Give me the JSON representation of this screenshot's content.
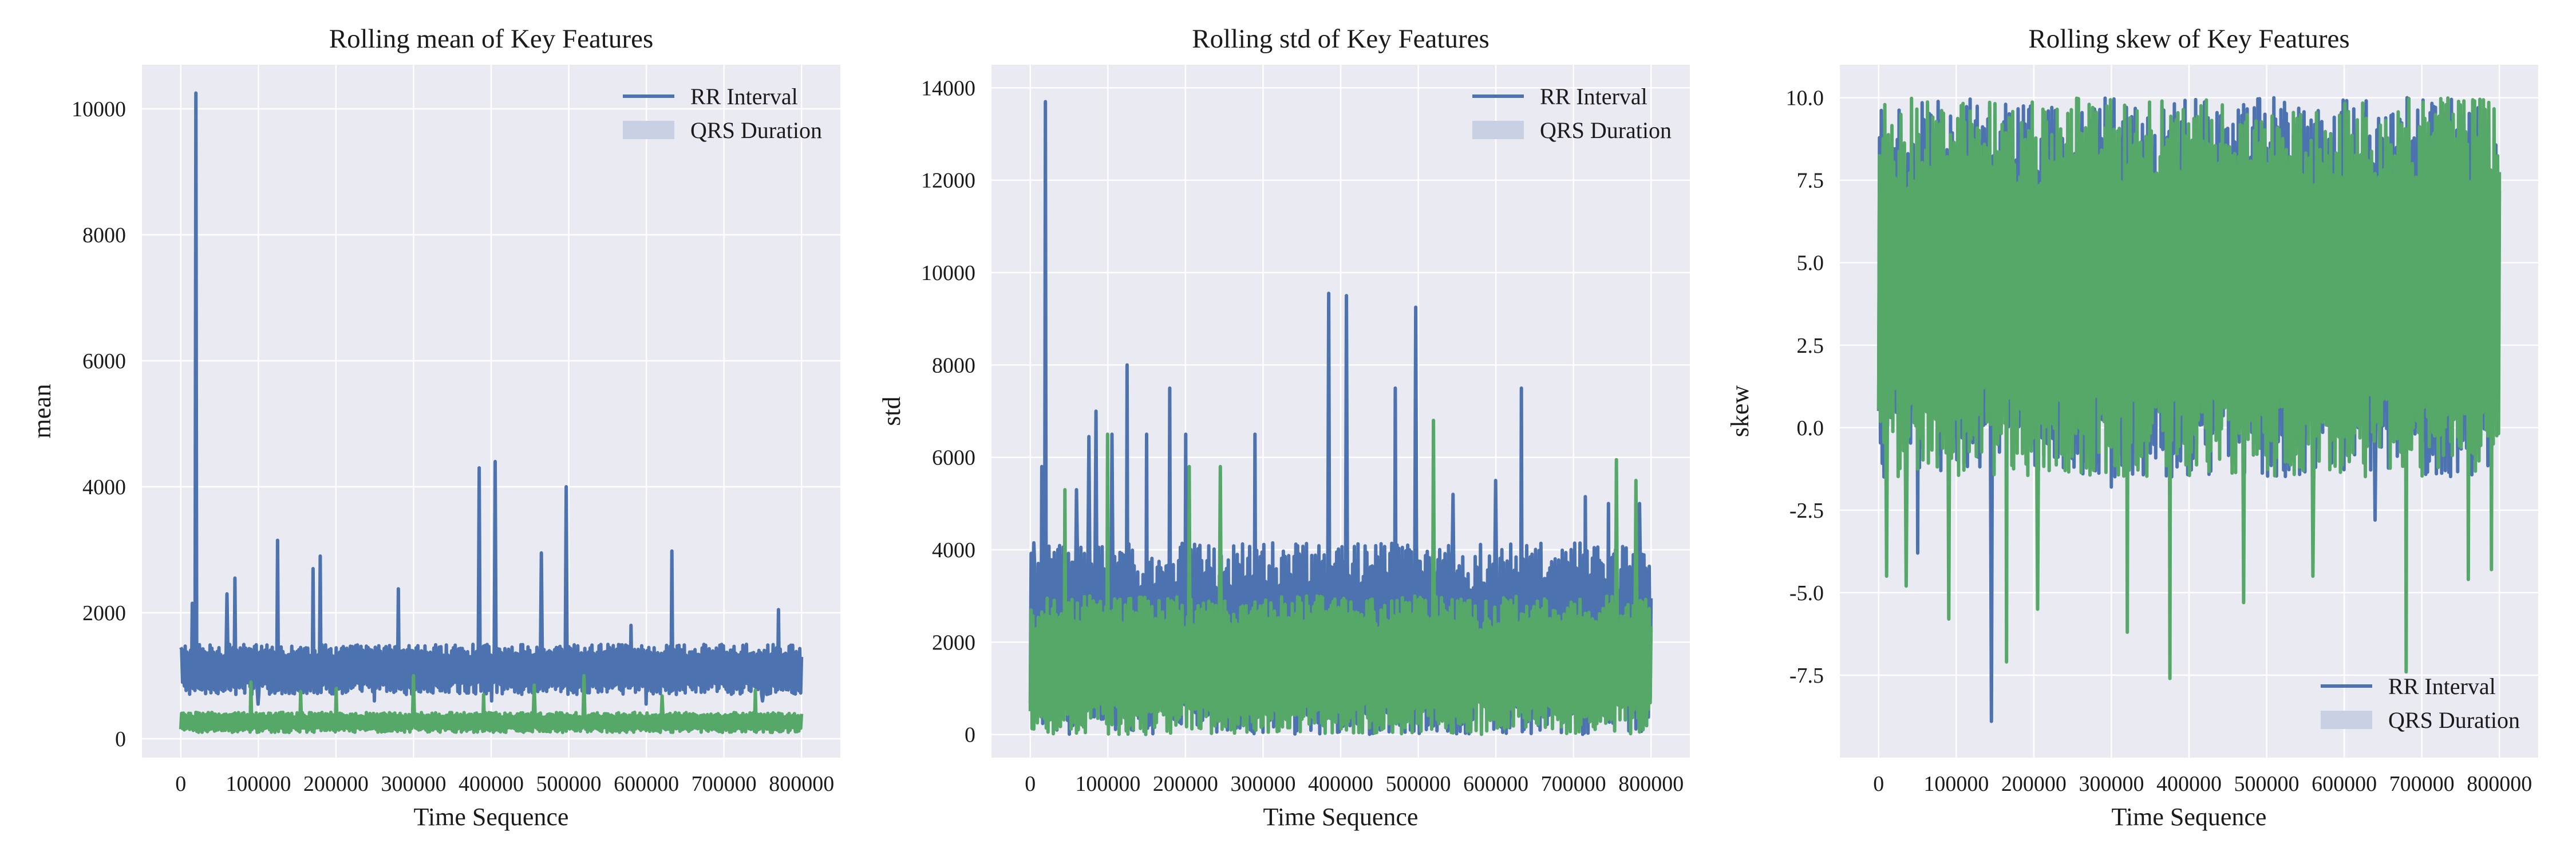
{
  "colors": {
    "rr": "#4c72b0",
    "qrs": "#55a868",
    "plot_bg": "#eaeaf2",
    "grid": "#ffffff",
    "legend_patch": "#c8d0e3"
  },
  "legend": {
    "rr_label": "RR Interval",
    "qrs_label": "QRS Duration"
  },
  "panels": [
    {
      "title": "Rolling mean of Key Features",
      "xlabel": "Time Sequence",
      "ylabel": "mean"
    },
    {
      "title": "Rolling std of Key Features",
      "xlabel": "Time Sequence",
      "ylabel": "std"
    },
    {
      "title": "Rolling skew of Key Features",
      "xlabel": "Time Sequence",
      "ylabel": "skew"
    }
  ],
  "chart_data": [
    {
      "type": "line",
      "title": "Rolling mean of Key Features",
      "xlabel": "Time Sequence",
      "ylabel": "mean",
      "xlim": [
        -50000,
        850000
      ],
      "ylim": [
        -300,
        10700
      ],
      "xticks": [
        0,
        100000,
        200000,
        300000,
        400000,
        500000,
        600000,
        700000,
        800000
      ],
      "yticks": [
        0,
        2000,
        4000,
        6000,
        8000,
        10000
      ],
      "legend_position": "upper right",
      "grid": true,
      "series": [
        {
          "name": "RR Interval",
          "band": [
            700,
            1500
          ],
          "spikes": [
            [
              0,
              1450
            ],
            [
              20000,
              10250
            ],
            [
              15000,
              2150
            ],
            [
              60000,
              2300
            ],
            [
              70000,
              2550
            ],
            [
              125000,
              3150
            ],
            [
              170000,
              2700
            ],
            [
              180000,
              2900
            ],
            [
              280000,
              2380
            ],
            [
              385000,
              4300
            ],
            [
              405000,
              4400
            ],
            [
              465000,
              2950
            ],
            [
              497000,
              4000
            ],
            [
              580000,
              1800
            ],
            [
              633000,
              2980
            ],
            [
              770000,
              2050
            ],
            [
              800000,
              1300
            ]
          ],
          "dips": [
            [
              100000,
              550
            ],
            [
              250000,
              600
            ],
            [
              400000,
              600
            ],
            [
              600000,
              550
            ],
            [
              750000,
              600
            ]
          ]
        },
        {
          "name": "QRS Duration",
          "band": [
            100,
            420
          ],
          "spikes": [
            [
              90000,
              900
            ],
            [
              155000,
              750
            ],
            [
              200000,
              800
            ],
            [
              300000,
              1000
            ],
            [
              390000,
              700
            ],
            [
              455000,
              850
            ],
            [
              520000,
              1000
            ],
            [
              620000,
              680
            ],
            [
              740000,
              770
            ]
          ],
          "dips": []
        }
      ]
    },
    {
      "type": "line",
      "title": "Rolling std of Key Features",
      "xlabel": "Time Sequence",
      "ylabel": "std",
      "xlim": [
        -50000,
        850000
      ],
      "ylim": [
        -500,
        14500
      ],
      "xticks": [
        0,
        100000,
        200000,
        300000,
        400000,
        500000,
        600000,
        700000,
        800000
      ],
      "yticks": [
        0,
        2000,
        4000,
        6000,
        8000,
        10000,
        12000,
        14000
      ],
      "legend_position": "upper right",
      "grid": true,
      "series": [
        {
          "name": "RR Interval",
          "band": [
            0,
            4150
          ],
          "spikes": [
            [
              5000,
              4150
            ],
            [
              20000,
              13700
            ],
            [
              15000,
              5800
            ],
            [
              60000,
              5300
            ],
            [
              75000,
              6450
            ],
            [
              85000,
              7000
            ],
            [
              105000,
              6500
            ],
            [
              125000,
              8000
            ],
            [
              150000,
              6500
            ],
            [
              180000,
              7500
            ],
            [
              200000,
              6500
            ],
            [
              290000,
              6500
            ],
            [
              385000,
              9550
            ],
            [
              408000,
              9500
            ],
            [
              470000,
              7500
            ],
            [
              497000,
              9250
            ],
            [
              545000,
              5200
            ],
            [
              600000,
              5500
            ],
            [
              633000,
              7500
            ],
            [
              715000,
              5150
            ],
            [
              745000,
              5000
            ],
            [
              785000,
              5000
            ],
            [
              800000,
              2950
            ]
          ],
          "dips": []
        },
        {
          "name": "QRS Duration",
          "band": [
            0,
            3000
          ],
          "spikes": [
            [
              45000,
              5300
            ],
            [
              100000,
              6500
            ],
            [
              205000,
              5800
            ],
            [
              245000,
              5800
            ],
            [
              520000,
              6800
            ],
            [
              755000,
              5950
            ],
            [
              780000,
              5500
            ]
          ],
          "dips": []
        }
      ]
    },
    {
      "type": "line",
      "title": "Rolling skew of Key Features",
      "xlabel": "Time Sequence",
      "ylabel": "skew",
      "xlim": [
        -50000,
        850000
      ],
      "ylim": [
        -10,
        11
      ],
      "xticks": [
        0,
        100000,
        200000,
        300000,
        400000,
        500000,
        600000,
        700000,
        800000
      ],
      "yticks": [
        -7.5,
        -5.0,
        -2.5,
        0.0,
        2.5,
        5.0,
        7.5,
        10.0
      ],
      "legend_position": "lower right",
      "grid": true,
      "series": [
        {
          "name": "RR Interval",
          "band": [
            -1.5,
            10.0
          ],
          "spikes": [],
          "dips": [
            [
              145000,
              -8.9
            ],
            [
              50000,
              -3.8
            ],
            [
              300000,
              -1.8
            ],
            [
              640000,
              -2.8
            ]
          ]
        },
        {
          "name": "QRS Duration",
          "band": [
            -1.5,
            10.0
          ],
          "spikes": [],
          "dips": [
            [
              10000,
              -4.5
            ],
            [
              35000,
              -4.8
            ],
            [
              90000,
              -5.8
            ],
            [
              165000,
              -7.1
            ],
            [
              205000,
              -5.5
            ],
            [
              320000,
              -6.2
            ],
            [
              375000,
              -7.6
            ],
            [
              470000,
              -5.3
            ],
            [
              560000,
              -4.5
            ],
            [
              680000,
              -7.4
            ],
            [
              760000,
              -4.6
            ],
            [
              790000,
              -4.3
            ]
          ]
        }
      ]
    }
  ]
}
